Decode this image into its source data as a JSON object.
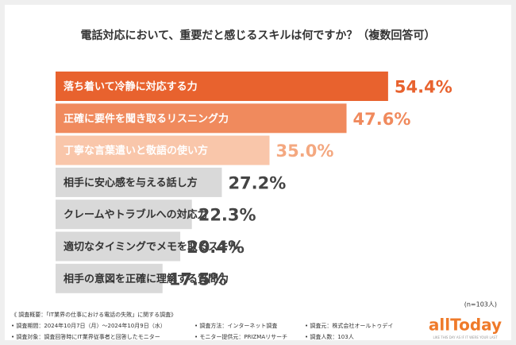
{
  "chart_data": {
    "type": "bar",
    "orientation": "horizontal",
    "title": "電話対応において、重要だと感じるスキルは何ですか？（複数回答可）",
    "categories": [
      "落ち着いて冷静に対応する力",
      "正確に要件を聞き取るリスニング力",
      "丁寧な言葉遣いと敬語の使い方",
      "相手に安心感を与える話し方",
      "クレームやトラブルへの対応力",
      "適切なタイミングでメモを取るスキル",
      "相手の意図を正確に理解する質問力"
    ],
    "values": [
      54.4,
      47.6,
      35.0,
      27.2,
      22.3,
      20.4,
      17.5
    ],
    "value_labels": [
      "54.4%",
      "47.6%",
      "35.0%",
      "27.2%",
      "22.3%",
      "20.4%",
      "17.5%"
    ],
    "colors": [
      "#e8622e",
      "#f08a5d",
      "#f9c6aa",
      "#d9d9d9",
      "#d9d9d9",
      "#d9d9d9",
      "#d9d9d9"
    ],
    "category_label_colors": [
      "#ffffff",
      "#ffffff",
      "#ffffff",
      "#333333",
      "#333333",
      "#333333",
      "#333333"
    ],
    "value_label_colors": [
      "#e8622e",
      "#f08a5d",
      "#f4a880",
      "#444444",
      "#444444",
      "#444444",
      "#444444"
    ],
    "sample_note": "(n=103人)"
  },
  "footer": {
    "heading": "《 調査概要：「IT業界の仕事における電話の失敗」に関する調査》",
    "rows": [
      [
        "• 調査期間：2024年10月7日（月）～2024年10月9日（水）",
        "• 調査方法：インターネット調査",
        "• 調査元：株式会社オールトゥデイ"
      ],
      [
        "• 調査対象：調査回答時にIT業界従事者と回答したモニター",
        "• モニター提供元：PRIZMAリサーチ",
        "• 調査人数：103人"
      ]
    ]
  },
  "logo": {
    "name": "allToday",
    "tagline": "LIKE THIS DAY AS IF IT WERE YOUR LAST"
  }
}
